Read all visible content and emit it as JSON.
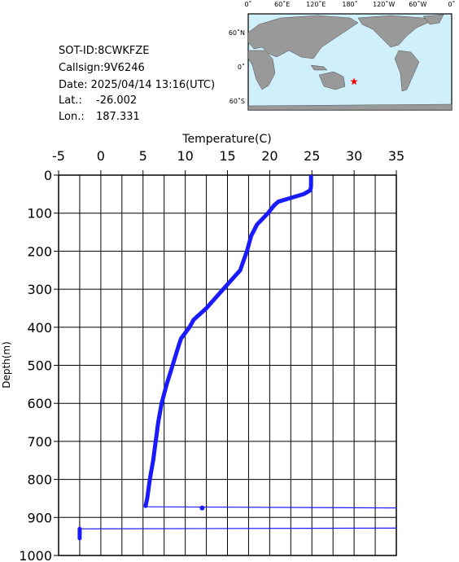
{
  "info": {
    "sot_id": "SOT-ID:8CWKFZE",
    "callsign": "Callsign:9V6246",
    "date": "Date:  2025/04/14 13:16(UTC)",
    "lat_label": "Lat.:",
    "lat": -26.002,
    "lon_label": "Lon.:",
    "lon": 187.331
  },
  "map": {
    "lon_labels": [
      "0˚",
      "60˚E",
      "120˚E",
      "180˚",
      "120˚W",
      "60˚W",
      "0˚"
    ],
    "lat_labels": [
      "60˚N",
      "0˚",
      "60˚S"
    ]
  },
  "chart_data": {
    "type": "line",
    "x_label": "Temperature(C)",
    "y_label": "Depth(m)",
    "xlim": [
      -5,
      35
    ],
    "xticks": [
      -5,
      0,
      5,
      10,
      15,
      20,
      25,
      30,
      35
    ],
    "ylim": [
      1000,
      0
    ],
    "yticks": [
      0,
      100,
      200,
      300,
      400,
      500,
      600,
      700,
      800,
      900,
      1000
    ],
    "grid": true,
    "series": [
      {
        "color": "#1a1aff",
        "style": "thick",
        "x": [
          24.9,
          24.9,
          24.8,
          24.0,
          22.5,
          21.0,
          20.5,
          19.8,
          18.5,
          17.8,
          17.3,
          16.5,
          14.5,
          12.5,
          11.0,
          10.5,
          9.5,
          9.2,
          8.5,
          7.8,
          7.2,
          6.8,
          6.5,
          6.2,
          5.8,
          5.5,
          5.3,
          null,
          -2.5,
          -2.5
        ],
        "y": [
          0,
          30,
          40,
          50,
          60,
          70,
          80,
          100,
          130,
          160,
          200,
          250,
          300,
          350,
          380,
          400,
          430,
          450,
          500,
          550,
          600,
          650,
          700,
          750,
          800,
          850,
          870,
          null,
          930,
          955
        ]
      },
      {
        "color": "#1a1aff",
        "style": "thin",
        "x": [
          5.3,
          35,
          null,
          -2.5,
          35
        ],
        "y": [
          872,
          875,
          null,
          930,
          928
        ]
      },
      {
        "color": "#1a1aff",
        "style": "dot",
        "x": [
          12
        ],
        "y": [
          875
        ]
      }
    ]
  }
}
